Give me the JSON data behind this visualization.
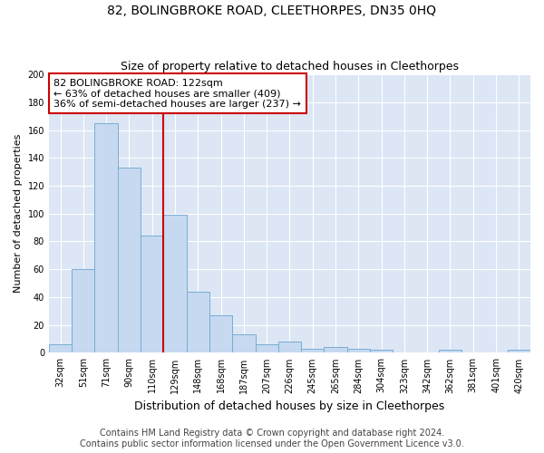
{
  "title": "82, BOLINGBROKE ROAD, CLEETHORPES, DN35 0HQ",
  "subtitle": "Size of property relative to detached houses in Cleethorpes",
  "xlabel": "Distribution of detached houses by size in Cleethorpes",
  "ylabel": "Number of detached properties",
  "categories": [
    "32sqm",
    "51sqm",
    "71sqm",
    "90sqm",
    "110sqm",
    "129sqm",
    "148sqm",
    "168sqm",
    "187sqm",
    "207sqm",
    "226sqm",
    "245sqm",
    "265sqm",
    "284sqm",
    "304sqm",
    "323sqm",
    "342sqm",
    "362sqm",
    "381sqm",
    "401sqm",
    "420sqm"
  ],
  "values": [
    6,
    60,
    165,
    133,
    84,
    99,
    44,
    27,
    13,
    6,
    8,
    3,
    4,
    3,
    2,
    0,
    0,
    2,
    0,
    0,
    2
  ],
  "bar_color": "#c6d9f0",
  "bar_edge_color": "#7aadd4",
  "vline_x_idx": 4.5,
  "vline_color": "#cc0000",
  "annotation_text": "82 BOLINGBROKE ROAD: 122sqm\n← 63% of detached houses are smaller (409)\n36% of semi-detached houses are larger (237) →",
  "annotation_box_facecolor": "#ffffff",
  "annotation_box_edgecolor": "#cc0000",
  "ylim": [
    0,
    200
  ],
  "yticks": [
    0,
    20,
    40,
    60,
    80,
    100,
    120,
    140,
    160,
    180,
    200
  ],
  "footer_line1": "Contains HM Land Registry data © Crown copyright and database right 2024.",
  "footer_line2": "Contains public sector information licensed under the Open Government Licence v3.0.",
  "plot_background": "#dce6f5",
  "fig_background": "#ffffff",
  "title_fontsize": 10,
  "subtitle_fontsize": 9,
  "xlabel_fontsize": 9,
  "ylabel_fontsize": 8,
  "tick_fontsize": 7,
  "annotation_fontsize": 8,
  "footer_fontsize": 7
}
